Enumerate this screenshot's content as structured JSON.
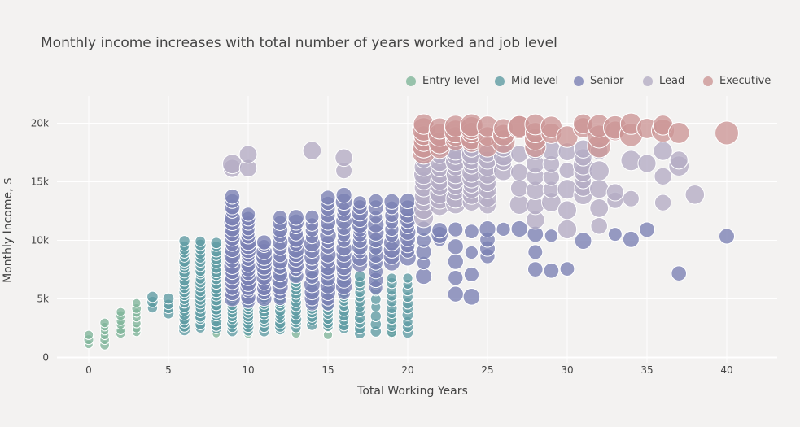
{
  "chart_data": {
    "type": "scatter",
    "title": "Monthly income increases with total number of years worked and job level",
    "xlabel": "Total Working Years",
    "ylabel": "Monthly Income, $",
    "xlim": [
      -2.5,
      43
    ],
    "ylim": [
      -500,
      22000
    ],
    "x_ticks": [
      0,
      5,
      10,
      15,
      20,
      25,
      30,
      35,
      40
    ],
    "x_tick_labels": [
      "0",
      "5",
      "10",
      "15",
      "20",
      "25",
      "30",
      "35",
      "40"
    ],
    "y_ticks": [
      0,
      5000,
      10000,
      15000,
      20000
    ],
    "y_tick_labels": [
      "0",
      "5k",
      "10k",
      "15k",
      "20k"
    ],
    "grid": true,
    "legend_position": "top-right",
    "series": [
      {
        "name": "Entry level",
        "color": "#7fb59a",
        "marker_size": 5,
        "ranges": [
          {
            "x": [
              0,
              0
            ],
            "y": [
              1100,
              1900
            ],
            "n": 3
          },
          {
            "x": [
              1,
              1
            ],
            "y": [
              1100,
              3000
            ],
            "n": 6
          },
          {
            "x": [
              2,
              2
            ],
            "y": [
              2000,
              3900
            ],
            "n": 6
          },
          {
            "x": [
              3,
              3
            ],
            "y": [
              2100,
              4600
            ],
            "n": 7
          },
          {
            "x": [
              4,
              20
            ],
            "y": [
              2000,
              4600
            ],
            "n": 6
          },
          {
            "x": [
              8,
              8
            ],
            "y": [
              2000,
              5000
            ],
            "n": 6
          },
          {
            "x": [
              10,
              10
            ],
            "y": [
              2100,
              6000
            ],
            "n": 6
          },
          {
            "x": [
              15,
              15
            ],
            "y": [
              2000,
              3000
            ],
            "n": 3
          },
          {
            "x": [
              18,
              20
            ],
            "y": [
              2000,
              3200
            ],
            "n": 4
          }
        ]
      },
      {
        "name": "Mid level",
        "color": "#5e9ba3",
        "marker_size": 6,
        "ranges": [
          {
            "x": [
              4,
              4
            ],
            "y": [
              4300,
              5200
            ],
            "n": 3
          },
          {
            "x": [
              5,
              5
            ],
            "y": [
              3800,
              5000
            ],
            "n": 4
          },
          {
            "x": [
              6,
              6
            ],
            "y": [
              2300,
              9900
            ],
            "n": 24
          },
          {
            "x": [
              7,
              7
            ],
            "y": [
              2500,
              9900
            ],
            "n": 22
          },
          {
            "x": [
              8,
              8
            ],
            "y": [
              2400,
              9800
            ],
            "n": 22
          },
          {
            "x": [
              9,
              9
            ],
            "y": [
              2200,
              8500
            ],
            "n": 20
          },
          {
            "x": [
              10,
              10
            ],
            "y": [
              2300,
              8000
            ],
            "n": 20
          },
          {
            "x": [
              11,
              11
            ],
            "y": [
              2300,
              7800
            ],
            "n": 18
          },
          {
            "x": [
              12,
              12
            ],
            "y": [
              2300,
              7500
            ],
            "n": 16
          },
          {
            "x": [
              13,
              13
            ],
            "y": [
              2600,
              7200
            ],
            "n": 14
          },
          {
            "x": [
              14,
              14
            ],
            "y": [
              2800,
              7100
            ],
            "n": 14
          },
          {
            "x": [
              15,
              15
            ],
            "y": [
              2600,
              7300
            ],
            "n": 14
          },
          {
            "x": [
              16,
              16
            ],
            "y": [
              2400,
              6700
            ],
            "n": 12
          },
          {
            "x": [
              17,
              17
            ],
            "y": [
              2100,
              6900
            ],
            "n": 12
          },
          {
            "x": [
              18,
              18
            ],
            "y": [
              2200,
              9800
            ],
            "n": 12
          },
          {
            "x": [
              19,
              19
            ],
            "y": [
              2200,
              6800
            ],
            "n": 10
          },
          {
            "x": [
              20,
              20
            ],
            "y": [
              2100,
              6700
            ],
            "n": 10
          }
        ]
      },
      {
        "name": "Senior",
        "color": "#7a80b4",
        "marker_size": 8,
        "ranges": [
          {
            "x": [
              9,
              9
            ],
            "y": [
              5000,
              13800
            ],
            "n": 20
          },
          {
            "x": [
              10,
              10
            ],
            "y": [
              4800,
              12200
            ],
            "n": 20
          },
          {
            "x": [
              11,
              11
            ],
            "y": [
              5000,
              9900
            ],
            "n": 12
          },
          {
            "x": [
              12,
              12
            ],
            "y": [
              5000,
              12000
            ],
            "n": 14
          },
          {
            "x": [
              13,
              13
            ],
            "y": [
              7000,
              12000
            ],
            "n": 12
          },
          {
            "x": [
              14,
              14
            ],
            "y": [
              4500,
              12000
            ],
            "n": 14
          },
          {
            "x": [
              15,
              15
            ],
            "y": [
              4500,
              13700
            ],
            "n": 18
          },
          {
            "x": [
              16,
              16
            ],
            "y": [
              5500,
              13800
            ],
            "n": 16
          },
          {
            "x": [
              17,
              17
            ],
            "y": [
              8000,
              13300
            ],
            "n": 12
          },
          {
            "x": [
              18,
              18
            ],
            "y": [
              6000,
              13400
            ],
            "n": 12
          },
          {
            "x": [
              19,
              19
            ],
            "y": [
              8000,
              13300
            ],
            "n": 10
          },
          {
            "x": [
              20,
              20
            ],
            "y": [
              8500,
              13300
            ],
            "n": 10
          },
          {
            "x": [
              21,
              21
            ],
            "y": [
              7000,
              11000
            ],
            "n": 5
          },
          {
            "x": [
              22,
              22
            ],
            "y": [
              10100,
              10900
            ],
            "n": 3
          },
          {
            "x": [
              23,
              23
            ],
            "y": [
              5400,
              10900
            ],
            "n": 5
          },
          {
            "x": [
              24,
              24
            ],
            "y": [
              5200,
              10800
            ],
            "n": 4
          },
          {
            "x": [
              25,
              25
            ],
            "y": [
              8600,
              10900
            ],
            "n": 4
          },
          {
            "x": [
              26,
              26
            ],
            "y": [
              10900,
              11000
            ],
            "n": 1
          },
          {
            "x": [
              27,
              27
            ],
            "y": [
              11000,
              11000
            ],
            "n": 1
          },
          {
            "x": [
              28,
              28
            ],
            "y": [
              7500,
              10500
            ],
            "n": 3
          },
          {
            "x": [
              29,
              29
            ],
            "y": [
              7400,
              10400
            ],
            "n": 2
          },
          {
            "x": [
              30,
              30
            ],
            "y": [
              7500,
              7500
            ],
            "n": 1
          },
          {
            "x": [
              31,
              31
            ],
            "y": [
              10000,
              10000
            ],
            "n": 1
          },
          {
            "x": [
              33,
              33
            ],
            "y": [
              10500,
              10500
            ],
            "n": 1
          },
          {
            "x": [
              34,
              34
            ],
            "y": [
              10100,
              10100
            ],
            "n": 1
          },
          {
            "x": [
              35,
              35
            ],
            "y": [
              10900,
              10900
            ],
            "n": 1
          },
          {
            "x": [
              37,
              37
            ],
            "y": [
              7200,
              7200
            ],
            "n": 1
          },
          {
            "x": [
              40,
              40
            ],
            "y": [
              10300,
              10300
            ],
            "n": 1
          }
        ]
      },
      {
        "name": "Lead",
        "color": "#b4acc4",
        "marker_size": 10,
        "ranges": [
          {
            "x": [
              9,
              9
            ],
            "y": [
              16100,
              16500
            ],
            "n": 2
          },
          {
            "x": [
              10,
              10
            ],
            "y": [
              16200,
              17400
            ],
            "n": 2
          },
          {
            "x": [
              14,
              14
            ],
            "y": [
              17600,
              17600
            ],
            "n": 1
          },
          {
            "x": [
              16,
              16
            ],
            "y": [
              16000,
              17000
            ],
            "n": 2
          },
          {
            "x": [
              21,
              21
            ],
            "y": [
              12000,
              17500
            ],
            "n": 10
          },
          {
            "x": [
              22,
              22
            ],
            "y": [
              13000,
              17800
            ],
            "n": 10
          },
          {
            "x": [
              23,
              23
            ],
            "y": [
              13100,
              17700
            ],
            "n": 10
          },
          {
            "x": [
              24,
              24
            ],
            "y": [
              13300,
              17800
            ],
            "n": 10
          },
          {
            "x": [
              25,
              25
            ],
            "y": [
              13000,
              17500
            ],
            "n": 8
          },
          {
            "x": [
              26,
              26
            ],
            "y": [
              16000,
              17800
            ],
            "n": 4
          },
          {
            "x": [
              27,
              27
            ],
            "y": [
              13000,
              17300
            ],
            "n": 4
          },
          {
            "x": [
              28,
              28
            ],
            "y": [
              11800,
              17800
            ],
            "n": 6
          },
          {
            "x": [
              29,
              29
            ],
            "y": [
              13200,
              17700
            ],
            "n": 5
          },
          {
            "x": [
              30,
              30
            ],
            "y": [
              11000,
              17600
            ],
            "n": 5
          },
          {
            "x": [
              31,
              31
            ],
            "y": [
              13800,
              17800
            ],
            "n": 7
          },
          {
            "x": [
              32,
              32
            ],
            "y": [
              11200,
              17600
            ],
            "n": 5
          },
          {
            "x": [
              33,
              33
            ],
            "y": [
              13400,
              14100
            ],
            "n": 2
          },
          {
            "x": [
              34,
              34
            ],
            "y": [
              13500,
              16800
            ],
            "n": 2
          },
          {
            "x": [
              35,
              35
            ],
            "y": [
              16600,
              16600
            ],
            "n": 1
          },
          {
            "x": [
              36,
              36
            ],
            "y": [
              13200,
              17600
            ],
            "n": 3
          },
          {
            "x": [
              37,
              37
            ],
            "y": [
              16300,
              16900
            ],
            "n": 2
          },
          {
            "x": [
              38,
              38
            ],
            "y": [
              13900,
              13900
            ],
            "n": 1
          }
        ]
      },
      {
        "name": "Executive",
        "color": "#cc9696",
        "marker_size": 12,
        "ranges": [
          {
            "x": [
              21,
              21
            ],
            "y": [
              17500,
              19900
            ],
            "n": 6
          },
          {
            "x": [
              22,
              22
            ],
            "y": [
              17800,
              19500
            ],
            "n": 4
          },
          {
            "x": [
              23,
              23
            ],
            "y": [
              18500,
              19800
            ],
            "n": 4
          },
          {
            "x": [
              24,
              24
            ],
            "y": [
              18400,
              19900
            ],
            "n": 5
          },
          {
            "x": [
              25,
              25
            ],
            "y": [
              18000,
              19700
            ],
            "n": 3
          },
          {
            "x": [
              26,
              26
            ],
            "y": [
              18500,
              19600
            ],
            "n": 3
          },
          {
            "x": [
              27,
              27
            ],
            "y": [
              19600,
              19700
            ],
            "n": 2
          },
          {
            "x": [
              28,
              28
            ],
            "y": [
              18000,
              19900
            ],
            "n": 4
          },
          {
            "x": [
              29,
              29
            ],
            "y": [
              19200,
              19700
            ],
            "n": 2
          },
          {
            "x": [
              30,
              30
            ],
            "y": [
              18900,
              18900
            ],
            "n": 1
          },
          {
            "x": [
              31,
              31
            ],
            "y": [
              19600,
              19900
            ],
            "n": 2
          },
          {
            "x": [
              32,
              32
            ],
            "y": [
              18000,
              19800
            ],
            "n": 3
          },
          {
            "x": [
              33,
              33
            ],
            "y": [
              19400,
              19600
            ],
            "n": 2
          },
          {
            "x": [
              34,
              34
            ],
            "y": [
              19000,
              19900
            ],
            "n": 2
          },
          {
            "x": [
              35,
              35
            ],
            "y": [
              19600,
              19600
            ],
            "n": 1
          },
          {
            "x": [
              36,
              36
            ],
            "y": [
              19300,
              19800
            ],
            "n": 2
          },
          {
            "x": [
              37,
              37
            ],
            "y": [
              19100,
              19100
            ],
            "n": 1
          },
          {
            "x": [
              40,
              40
            ],
            "y": [
              19200,
              19200
            ],
            "n": 1
          }
        ]
      }
    ]
  }
}
